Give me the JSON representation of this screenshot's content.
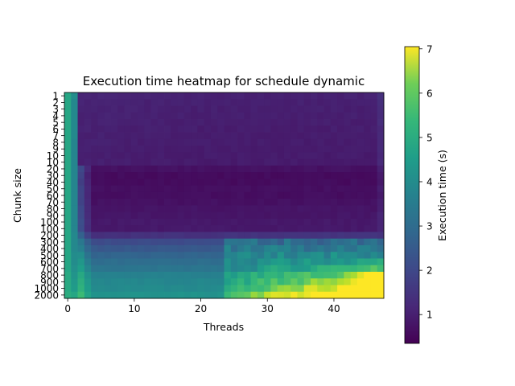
{
  "chart_data": {
    "type": "heatmap",
    "title": "Execution time heatmap for schedule dynamic",
    "xlabel": "Threads",
    "ylabel": "Chunk size",
    "colorbar_label": "Execution time (s)",
    "colormap": "viridis",
    "x_range": [
      0,
      47
    ],
    "x_ticks": [
      0,
      10,
      20,
      30,
      40
    ],
    "y_labels": [
      "1",
      "2",
      "3",
      "4",
      "5",
      "6",
      "7",
      "8",
      "9",
      "10",
      "10",
      "20",
      "30",
      "40",
      "50",
      "60",
      "70",
      "80",
      "90",
      "100",
      "100",
      "200",
      "300",
      "400",
      "500",
      "600",
      "700",
      "800",
      "900",
      "1000",
      "2000"
    ],
    "color_range": [
      0.35,
      7.05
    ],
    "colorbar_ticks": [
      1,
      2,
      3,
      4,
      5,
      6,
      7
    ],
    "value_model": {
      "thread0_values": [
        4.3,
        4.3,
        4.3,
        4.3,
        4.3,
        4.3,
        4.3,
        4.3,
        4.3,
        4.3,
        4.3,
        4.3,
        4.3,
        4.3,
        4.3,
        4.3,
        4.3,
        4.3,
        4.3,
        4.3,
        4.3,
        4.3,
        4.3,
        4.3,
        4.3,
        4.3,
        4.3,
        4.4,
        4.4,
        4.4,
        4.5
      ],
      "thread1_values": [
        3.6,
        3.5,
        3.5,
        3.5,
        3.5,
        3.5,
        3.5,
        3.4,
        3.4,
        3.4,
        3.4,
        3.4,
        3.4,
        3.4,
        3.4,
        3.4,
        3.4,
        3.4,
        3.4,
        3.4,
        3.4,
        3.5,
        3.5,
        3.5,
        3.6,
        3.6,
        3.7,
        3.8,
        3.9,
        4.0,
        4.3
      ],
      "row_base_values": [
        1.05,
        1.02,
        1.0,
        1.0,
        0.98,
        0.97,
        0.96,
        0.95,
        0.94,
        0.93,
        0.93,
        0.65,
        0.55,
        0.55,
        0.62,
        0.6,
        0.65,
        0.72,
        0.75,
        0.8,
        0.8,
        1.3,
        1.9,
        2.2,
        2.5,
        2.75,
        2.95,
        3.3,
        3.45,
        3.55,
        3.75
      ],
      "high_thread_region_start": 24,
      "high_thread_row_values": {
        "21": 1.35,
        "22": 2.7,
        "23": 3.0,
        "24": 3.5,
        "25": 3.4,
        "26": 3.6,
        "27": 3.9,
        "28": 4.1,
        "29": 4.4,
        "30": 5.0
      }
    }
  }
}
